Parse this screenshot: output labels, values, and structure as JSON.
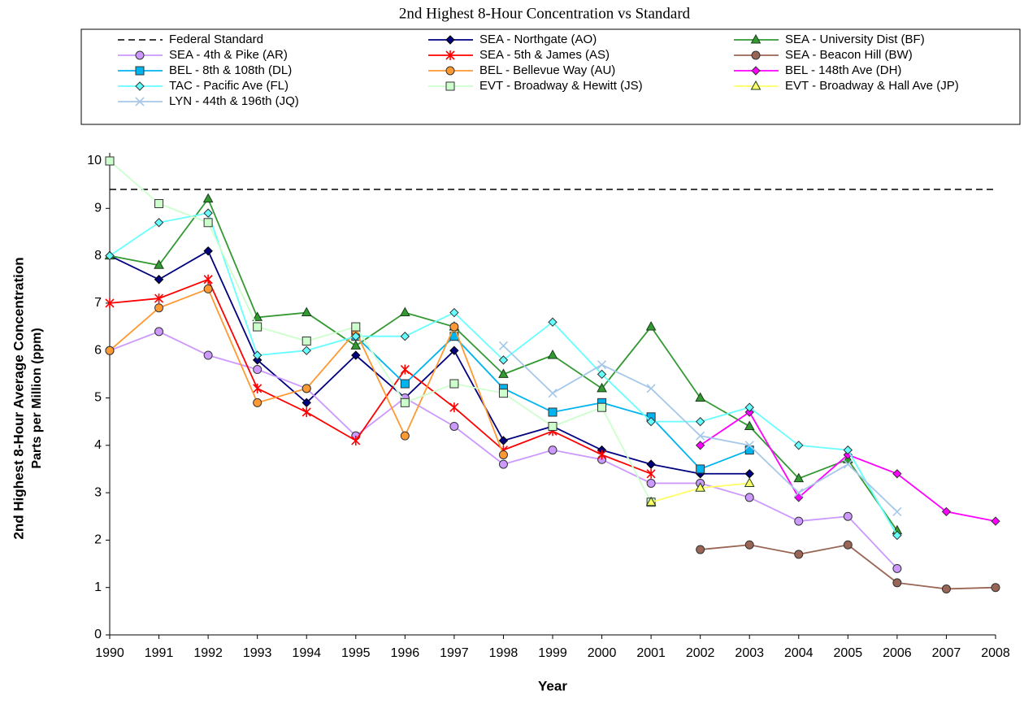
{
  "chart_data": {
    "type": "line",
    "title": "2nd Highest 8-Hour Concentration vs Standard",
    "x_label": "Year",
    "y_label": [
      "2nd Highest 8-Hour Average Concentration",
      "Parts per Million (ppm)"
    ],
    "x": [
      1990,
      1991,
      1992,
      1993,
      1994,
      1995,
      1996,
      1997,
      1998,
      1999,
      2000,
      2001,
      2002,
      2003,
      2004,
      2005,
      2006,
      2007,
      2008
    ],
    "xlim": [
      1990,
      2008
    ],
    "xticks": [
      1990,
      1991,
      1992,
      1993,
      1994,
      1995,
      1996,
      1997,
      1998,
      1999,
      2000,
      2001,
      2002,
      2003,
      2004,
      2005,
      2006,
      2007,
      2008
    ],
    "ylim": [
      0,
      10
    ],
    "yticks": [
      0,
      1,
      2,
      3,
      4,
      5,
      6,
      7,
      8,
      9,
      10
    ],
    "grid": false,
    "series": [
      {
        "name": "Federal Standard",
        "color": "#000000",
        "marker": "none",
        "dash": true,
        "values": [
          9.4,
          9.4,
          9.4,
          9.4,
          9.4,
          9.4,
          9.4,
          9.4,
          9.4,
          9.4,
          9.4,
          9.4,
          9.4,
          9.4,
          9.4,
          9.4,
          9.4,
          9.4,
          9.4
        ]
      },
      {
        "name": "SEA - Northgate (AO)",
        "color": "#000080",
        "marker": "diamond",
        "values": [
          8.0,
          7.5,
          8.1,
          5.8,
          4.9,
          5.9,
          5.0,
          6.0,
          4.1,
          4.4,
          3.9,
          3.6,
          3.4,
          3.4,
          null,
          null,
          null,
          null,
          null
        ]
      },
      {
        "name": "SEA - University Dist (BF)",
        "color": "#339933",
        "marker": "triangle",
        "values": [
          8.0,
          7.8,
          9.2,
          6.7,
          6.8,
          6.1,
          6.8,
          6.5,
          5.5,
          5.9,
          5.2,
          6.5,
          5.0,
          4.4,
          3.3,
          3.7,
          2.2,
          null,
          null
        ]
      },
      {
        "name": "SEA - 4th & Pike (AR)",
        "color": "#cc99ff",
        "marker": "circle",
        "values": [
          6.0,
          6.4,
          5.9,
          5.6,
          5.2,
          4.2,
          5.0,
          4.4,
          3.6,
          3.9,
          3.7,
          3.2,
          3.2,
          2.9,
          2.4,
          2.5,
          1.4,
          null,
          null
        ]
      },
      {
        "name": "SEA - 5th & James (AS)",
        "color": "#ff0000",
        "marker": "star",
        "values": [
          7.0,
          7.1,
          7.5,
          5.2,
          4.7,
          4.1,
          5.6,
          4.8,
          3.9,
          4.3,
          3.8,
          3.4,
          null,
          null,
          null,
          null,
          null,
          null,
          null
        ]
      },
      {
        "name": "SEA - Beacon Hill (BW)",
        "color": "#996655",
        "marker": "circle",
        "values": [
          null,
          null,
          null,
          null,
          null,
          null,
          null,
          null,
          null,
          null,
          null,
          null,
          1.8,
          1.9,
          1.7,
          1.9,
          1.1,
          0.97,
          1.0
        ]
      },
      {
        "name": "BEL - 8th & 108th (DL)",
        "color": "#00b4f0",
        "marker": "square",
        "values": [
          null,
          null,
          null,
          null,
          null,
          6.3,
          5.3,
          6.3,
          5.2,
          4.7,
          4.9,
          4.6,
          3.5,
          3.9,
          null,
          null,
          null,
          null,
          null
        ]
      },
      {
        "name": "BEL - Bellevue Way (AU)",
        "color": "#ff9933",
        "marker": "circle",
        "values": [
          6.0,
          6.9,
          7.3,
          4.9,
          5.2,
          6.4,
          4.2,
          6.5,
          3.8,
          null,
          null,
          null,
          null,
          null,
          null,
          null,
          null,
          null,
          null
        ]
      },
      {
        "name": "BEL - 148th Ave (DH)",
        "color": "#ff00ff",
        "marker": "diamond",
        "values": [
          null,
          null,
          null,
          null,
          null,
          null,
          null,
          null,
          null,
          null,
          null,
          null,
          4.0,
          4.7,
          2.9,
          3.8,
          3.4,
          2.6,
          2.4
        ]
      },
      {
        "name": "TAC - Pacific Ave (FL)",
        "color": "#66ffff",
        "marker": "diamond",
        "values": [
          8.0,
          8.7,
          8.9,
          5.9,
          6.0,
          6.3,
          6.3,
          6.8,
          5.8,
          6.6,
          5.5,
          4.5,
          4.5,
          4.8,
          4.0,
          3.9,
          2.1,
          null,
          null
        ]
      },
      {
        "name": "EVT - Broadway & Hewitt (JS)",
        "color": "#ccffcc",
        "marker": "square",
        "values": [
          10.0,
          9.1,
          8.7,
          6.5,
          6.2,
          6.5,
          4.9,
          5.3,
          5.1,
          4.4,
          4.8,
          2.8,
          null,
          null,
          null,
          null,
          null,
          null,
          null
        ]
      },
      {
        "name": "EVT - Broadway & Hall Ave (JP)",
        "color": "#ffff66",
        "marker": "triangle",
        "values": [
          null,
          null,
          null,
          null,
          null,
          null,
          null,
          null,
          null,
          null,
          null,
          2.8,
          3.1,
          3.2,
          null,
          null,
          null,
          null,
          null
        ]
      },
      {
        "name": "LYN - 44th & 196th (JQ)",
        "color": "#a6c8e8",
        "marker": "x",
        "values": [
          null,
          null,
          null,
          null,
          null,
          null,
          null,
          null,
          6.1,
          5.1,
          5.7,
          5.2,
          4.2,
          4.0,
          3.0,
          3.6,
          2.6,
          null,
          null
        ]
      }
    ]
  }
}
